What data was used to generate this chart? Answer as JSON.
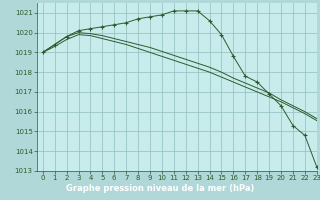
{
  "title": "Graphe pression niveau de la mer (hPa)",
  "background_color": "#b0d8d8",
  "plot_bg_color": "#c8ecec",
  "grid_color": "#90bcbc",
  "line_color": "#2d5a2d",
  "xlim": [
    -0.5,
    23
  ],
  "ylim": [
    1013,
    1021.5
  ],
  "yticks": [
    1013,
    1014,
    1015,
    1016,
    1017,
    1018,
    1019,
    1020,
    1021
  ],
  "xticks": [
    0,
    1,
    2,
    3,
    4,
    5,
    6,
    7,
    8,
    9,
    10,
    11,
    12,
    13,
    14,
    15,
    16,
    17,
    18,
    19,
    20,
    21,
    22,
    23
  ],
  "series1_x": [
    0,
    1,
    2,
    3,
    4,
    5,
    6,
    7,
    8,
    9,
    10,
    11,
    12,
    13,
    14,
    15,
    16,
    17,
    18,
    19,
    20,
    21,
    22,
    23
  ],
  "series1_y": [
    1019.0,
    1019.4,
    1019.8,
    1020.1,
    1020.2,
    1020.3,
    1020.4,
    1020.5,
    1020.7,
    1020.8,
    1020.9,
    1021.1,
    1021.1,
    1021.1,
    1020.6,
    1019.9,
    1018.8,
    1017.8,
    1017.5,
    1016.9,
    1016.3,
    1015.3,
    1014.8,
    1013.2
  ],
  "series2_x": [
    0,
    1,
    2,
    3,
    4,
    5,
    6,
    7,
    8,
    9,
    10,
    11,
    12,
    13,
    14,
    15,
    16,
    17,
    18,
    19,
    20,
    21,
    22,
    23
  ],
  "series2_y": [
    1019.0,
    1019.4,
    1019.8,
    1020.0,
    1019.95,
    1019.85,
    1019.7,
    1019.55,
    1019.4,
    1019.25,
    1019.05,
    1018.85,
    1018.65,
    1018.45,
    1018.25,
    1018.0,
    1017.7,
    1017.45,
    1017.2,
    1016.95,
    1016.6,
    1016.3,
    1016.0,
    1015.65
  ],
  "series3_x": [
    0,
    1,
    2,
    3,
    4,
    5,
    6,
    7,
    8,
    9,
    10,
    11,
    12,
    13,
    14,
    15,
    16,
    17,
    18,
    19,
    20,
    21,
    22,
    23
  ],
  "series3_y": [
    1019.0,
    1019.3,
    1019.65,
    1019.9,
    1019.85,
    1019.7,
    1019.55,
    1019.4,
    1019.2,
    1019.0,
    1018.8,
    1018.6,
    1018.4,
    1018.2,
    1018.0,
    1017.75,
    1017.5,
    1017.25,
    1017.0,
    1016.75,
    1016.5,
    1016.2,
    1015.9,
    1015.55
  ],
  "xlabel_bg": "#3d7a3d",
  "xlabel_color": "#ffffff",
  "tick_color": "#2d5a2d",
  "label_fontsize": 6,
  "tick_fontsize": 5
}
